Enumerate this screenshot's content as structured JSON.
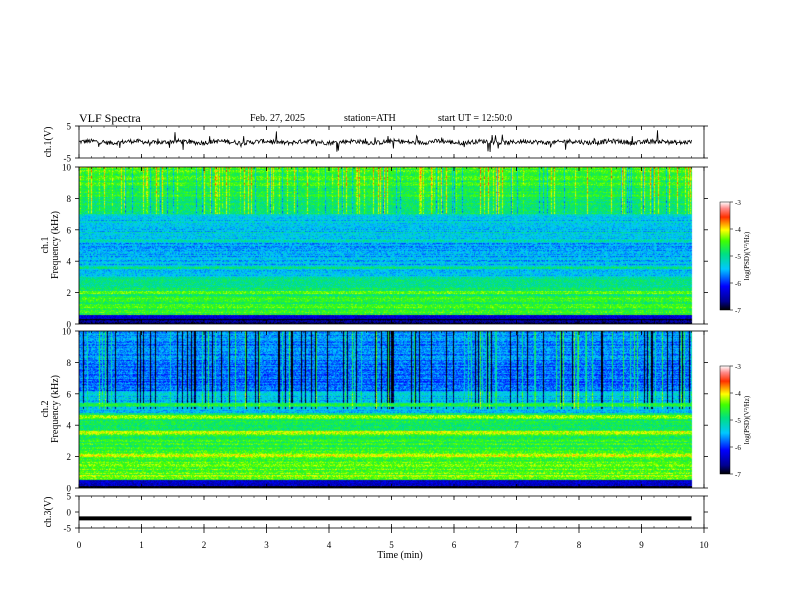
{
  "header": {
    "title": "VLF Spectra",
    "date": "Feb. 27, 2025",
    "station": "station=ATH",
    "start_ut": "start UT =  12:50:0"
  },
  "chart_data": [
    {
      "type": "line",
      "panel": "ch1-waveform",
      "ylabel": "ch.1(V)",
      "ylim": [
        -5,
        5
      ],
      "yticks": [
        5,
        -5
      ],
      "xlim": [
        0,
        10
      ],
      "x_end": 9.8,
      "baseline": 0,
      "noise_amplitude": 0.7
    },
    {
      "type": "heatmap",
      "panel": "ch1-spectrogram",
      "ylabel_channel": "ch.1",
      "ylabel": "Frequency (kHz)",
      "ylim": [
        0,
        10
      ],
      "yticks": [
        0,
        2,
        4,
        6,
        8,
        10
      ],
      "xlim": [
        0,
        10
      ],
      "x_end": 9.8,
      "colorbar": {
        "label": "log(PSD)(V²/Hz)",
        "range": [
          -7,
          -3
        ],
        "ticks": [
          -3,
          -4,
          -5,
          -6,
          -7
        ]
      },
      "bands": [
        {
          "f": 1.0,
          "v": -4.4
        },
        {
          "f": 1.6,
          "v": -4.3
        },
        {
          "f": 2.0,
          "v": -4.3
        },
        {
          "f": 3.6,
          "v": -4.8
        },
        {
          "f": 5.3,
          "v": -5.0
        },
        {
          "f": 5.8,
          "v": -5.1
        }
      ]
    },
    {
      "type": "heatmap",
      "panel": "ch2-spectrogram",
      "ylabel_channel": "ch.2",
      "ylabel": "Frequency (kHz)",
      "ylim": [
        0,
        10
      ],
      "yticks": [
        0,
        2,
        4,
        6,
        8,
        10
      ],
      "xlim": [
        0,
        10
      ],
      "x_end": 9.8,
      "colorbar": {
        "label": "log(PSD)(V²/Hz)",
        "range": [
          -7,
          -3
        ],
        "ticks": [
          -3,
          -4,
          -5,
          -6,
          -7
        ]
      },
      "bands": [
        {
          "f": 0.8,
          "v": -4.2
        },
        {
          "f": 1.5,
          "v": -4.3
        },
        {
          "f": 2.1,
          "v": -3.9
        },
        {
          "f": 3.5,
          "v": -3.9
        },
        {
          "f": 4.5,
          "v": -4.0
        },
        {
          "f": 5.3,
          "v": -4.6
        }
      ]
    },
    {
      "type": "line",
      "panel": "ch3-waveform",
      "ylabel": "ch.3(V)",
      "ylim": [
        -5,
        5
      ],
      "yticks": [
        5,
        0,
        -5
      ],
      "xlim": [
        0,
        10
      ],
      "x_end": 9.8,
      "baseline": -2,
      "noise_amplitude": 0
    }
  ],
  "xaxis": {
    "label": "Time (min)",
    "ticks": [
      0,
      1,
      2,
      3,
      4,
      5,
      6,
      7,
      8,
      9,
      10
    ]
  }
}
